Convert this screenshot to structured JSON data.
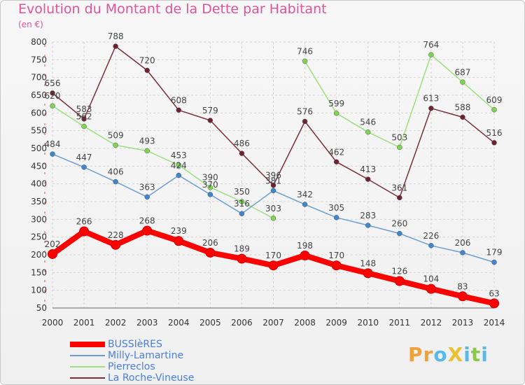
{
  "chart_data": {
    "type": "line",
    "title": "Evolution du Montant de la Dette par Habitant",
    "subtitle": "(en €)",
    "x": [
      "2000",
      "2001",
      "2002",
      "2003",
      "2004",
      "2005",
      "2006",
      "2007",
      "2008",
      "2009",
      "2010",
      "2011",
      "2012",
      "2013",
      "2014"
    ],
    "ylim": [
      50,
      800
    ],
    "yticks": [
      50,
      100,
      150,
      200,
      250,
      300,
      350,
      400,
      450,
      500,
      550,
      600,
      650,
      700,
      750,
      800
    ],
    "grid": true,
    "legend_position": "bottom-left",
    "series": [
      {
        "name": "BUSSIèRES",
        "color": "#ff0000",
        "point_color": "#ff0000",
        "values": [
          202,
          266,
          228,
          268,
          239,
          206,
          189,
          170,
          198,
          170,
          148,
          126,
          104,
          83,
          63
        ]
      },
      {
        "name": "Milly-Lamartine",
        "color": "#6b9fd1",
        "point_color": "#3f86cf",
        "values": [
          484,
          447,
          406,
          363,
          424,
          370,
          316,
          381,
          342,
          305,
          283,
          260,
          226,
          206,
          179
        ]
      },
      {
        "name": "Pierreclos",
        "color": "#9be07e",
        "point_color": "#7fd452",
        "values": [
          620,
          562,
          509,
          493,
          453,
          390,
          350,
          303,
          746,
          599,
          546,
          503,
          764,
          687,
          609
        ],
        "gaps": [
          [
            7,
            8
          ]
        ]
      },
      {
        "name": "La Roche-Vineuse",
        "color": "#7a2f3a",
        "point_color": "#6e2330",
        "values": [
          656,
          583,
          788,
          720,
          608,
          579,
          486,
          396,
          576,
          462,
          413,
          361,
          613,
          588,
          516
        ]
      }
    ]
  },
  "logo": {
    "text": "ProXiti"
  }
}
